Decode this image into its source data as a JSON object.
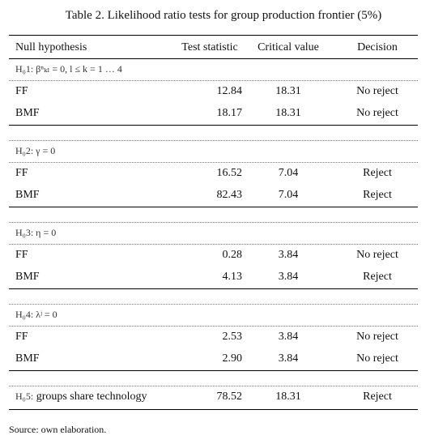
{
  "caption": "Table 2. Likelihood ratio tests for group production frontier (5%)",
  "headers": {
    "null_hypothesis": "Null hypothesis",
    "test_statistic": "Test statistic",
    "critical_value": "Critical value",
    "decision": "Decision"
  },
  "groups": [
    {
      "hypothesis": "H₀1: βⁿₖₗ = 0, l ≤ k = 1 … 4",
      "rows": [
        {
          "label": "FF",
          "stat": "12.84",
          "crit": "18.31",
          "decision": "No reject"
        },
        {
          "label": "BMF",
          "stat": "18.17",
          "crit": "18.31",
          "decision": "No reject"
        }
      ]
    },
    {
      "hypothesis": "H₀2: γ = 0",
      "rows": [
        {
          "label": "FF",
          "stat": "16.52",
          "crit": "7.04",
          "decision": "Reject"
        },
        {
          "label": "BMF",
          "stat": "82.43",
          "crit": "7.04",
          "decision": "Reject"
        }
      ]
    },
    {
      "hypothesis": "H₀3: η = 0",
      "rows": [
        {
          "label": "FF",
          "stat": "0.28",
          "crit": "3.84",
          "decision": "No reject"
        },
        {
          "label": "BMF",
          "stat": "4.13",
          "crit": "3.84",
          "decision": "Reject"
        }
      ]
    },
    {
      "hypothesis": "H₀4: λʲ = 0",
      "rows": [
        {
          "label": "FF",
          "stat": "2.53",
          "crit": "3.84",
          "decision": "No reject"
        },
        {
          "label": "BMF",
          "stat": "2.90",
          "crit": "3.84",
          "decision": "No reject"
        }
      ]
    }
  ],
  "final_row": {
    "hypothesis_symbol": "H₀5:",
    "hypothesis_text": "groups share technology",
    "stat": "78.52",
    "crit": "18.31",
    "decision": "Reject"
  },
  "source": "Source: own elaboration."
}
